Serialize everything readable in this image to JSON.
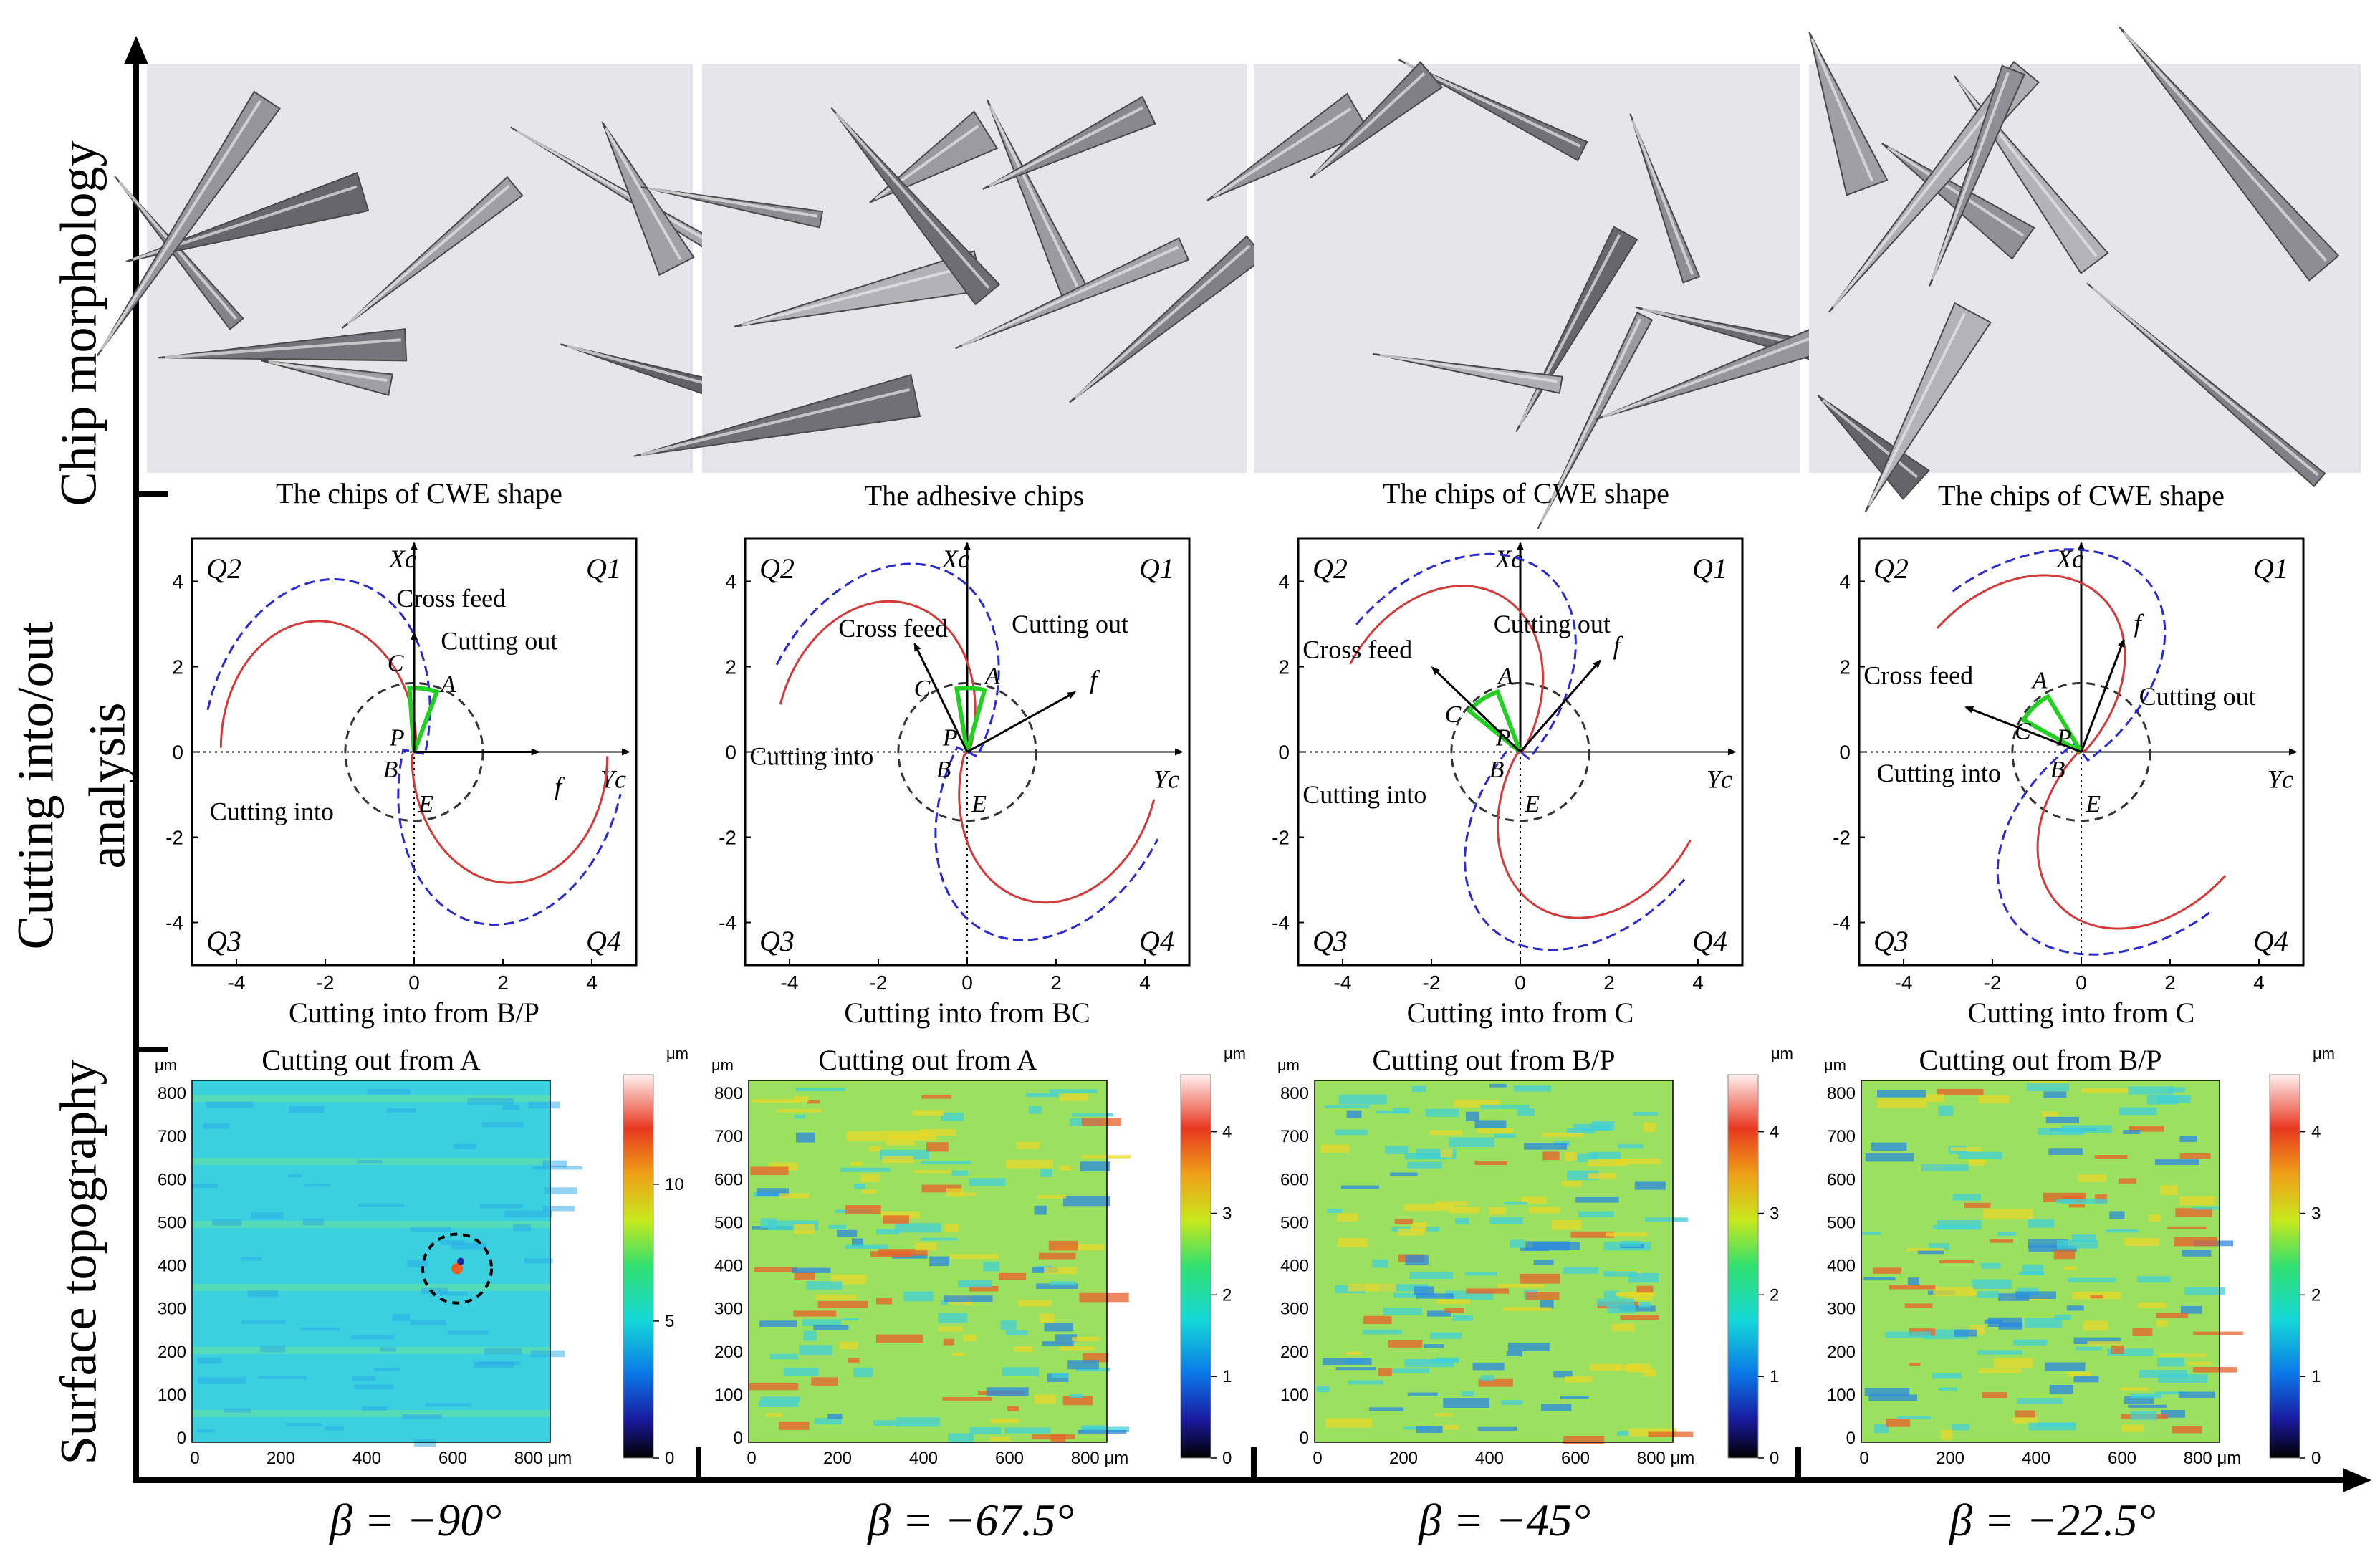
{
  "row_labels": {
    "chip": "Chip morphology",
    "cutting_l1": "Cutting into/out",
    "cutting_l2": "analysis",
    "surface": "Surface topography"
  },
  "colors": {
    "red_curve": "#d43a3a",
    "blue_curve": "#2a2ad0",
    "green_arc": "#22d022",
    "black": "#000000"
  },
  "columns": [
    {
      "beta": "β = −90°",
      "photo_caption": "The chips of CWE shape",
      "photo_variant": "cwe-1",
      "plot_labels": {
        "Q1": "Q1",
        "Q2": "Q2",
        "Q3": "Q3",
        "Q4": "Q4",
        "Xc": "Xc",
        "Yc": "Yc",
        "f": "f",
        "A": "A",
        "B": "B",
        "C": "C",
        "P": "P",
        "E": "E",
        "cross_feed": "Cross feed",
        "cutting_out": "Cutting out",
        "cutting_into": "Cutting into"
      },
      "caption_into": "Cutting into from B/P",
      "caption_out": "Cutting out from A",
      "colorbar_ticks": [
        "10",
        "5",
        "0"
      ],
      "colorbar_max": 14,
      "map_variant": "smooth"
    },
    {
      "beta": "β = −67.5°",
      "photo_caption": "The adhesive chips",
      "photo_variant": "adhesive",
      "plot_labels": {
        "Q1": "Q1",
        "Q2": "Q2",
        "Q3": "Q3",
        "Q4": "Q4",
        "Xc": "Xc",
        "Yc": "Yc",
        "f": "f",
        "A": "A",
        "B": "B",
        "C": "C",
        "P": "P",
        "E": "E",
        "cross_feed": "Cross feed",
        "cutting_out": "Cutting out",
        "cutting_into": "Cutting into"
      },
      "caption_into": "Cutting into from BC",
      "caption_out": "Cutting out from A",
      "colorbar_ticks": [
        "4",
        "3",
        "2",
        "1",
        "0"
      ],
      "colorbar_max": 4.7,
      "map_variant": "rough"
    },
    {
      "beta": "β = −45°",
      "photo_caption": "The chips of CWE shape",
      "photo_variant": "cwe-2",
      "plot_labels": {
        "Q1": "Q1",
        "Q2": "Q2",
        "Q3": "Q3",
        "Q4": "Q4",
        "Xc": "Xc",
        "Yc": "Yc",
        "f": "f",
        "A": "A",
        "B": "B",
        "C": "C",
        "P": "P",
        "E": "E",
        "cross_feed": "Cross feed",
        "cutting_out": "Cutting out",
        "cutting_into": "Cutting into"
      },
      "caption_into": "Cutting into from C",
      "caption_out": "Cutting out from B/P",
      "colorbar_ticks": [
        "4",
        "3",
        "2",
        "1",
        "0"
      ],
      "colorbar_max": 4.7,
      "map_variant": "rough"
    },
    {
      "beta": "β = −22.5°",
      "photo_caption": "The chips of CWE shape",
      "photo_variant": "cwe-3",
      "plot_labels": {
        "Q1": "Q1",
        "Q2": "Q2",
        "Q3": "Q3",
        "Q4": "Q4",
        "Xc": "Xc",
        "Yc": "Yc",
        "f": "f",
        "A": "A",
        "B": "B",
        "C": "C",
        "P": "P",
        "E": "E",
        "cross_feed": "Cross feed",
        "cutting_out": "Cutting out",
        "cutting_into": "Cutting into"
      },
      "caption_into": "Cutting into from C",
      "caption_out": "Cutting out from B/P",
      "colorbar_ticks": [
        "4",
        "3",
        "2",
        "1",
        "0"
      ],
      "colorbar_max": 4.7,
      "map_variant": "rough"
    }
  ],
  "plot_axes": {
    "ticks_x": [
      "-4",
      "-2",
      "0",
      "2",
      "4"
    ],
    "ticks_y": [
      "4",
      "2",
      "0",
      "-2",
      "-4"
    ]
  },
  "map_axes": {
    "unit": "μm",
    "ticks_y": [
      "800",
      "700",
      "600",
      "500",
      "400",
      "300",
      "200",
      "100",
      "0"
    ],
    "ticks_x": [
      "0",
      "200",
      "400",
      "600"
    ],
    "last_x": "800 μm"
  }
}
